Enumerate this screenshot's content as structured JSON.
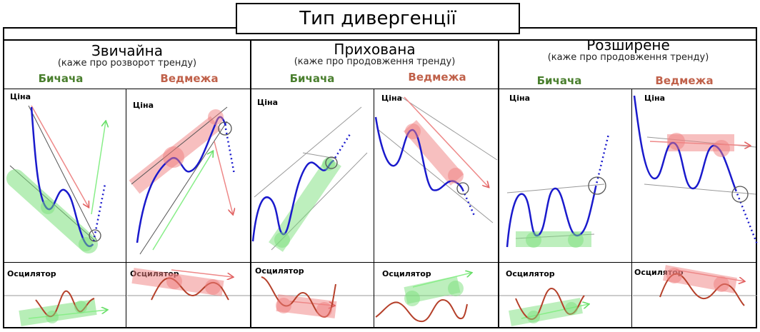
{
  "title": "Тип дивергенції",
  "groups": [
    {
      "name": "Звичайна",
      "note": "(каже про розворот тренду)"
    },
    {
      "name": "Прихована",
      "note": "(каже про продовження тренду)"
    },
    {
      "name": "Розширене",
      "note": "(каже про продовження тренду)"
    }
  ],
  "subtypes": {
    "bull": "Бичача",
    "bear": "Ведмежа"
  },
  "labels": {
    "price": "Ціна",
    "oscillator": "Осцилятор"
  },
  "colors": {
    "bull_label": "#4a7f2e",
    "bear_label": "#c0614a",
    "price_line": "#1a1acc",
    "osc_line": "#b5402a",
    "green_band": "#7be07b",
    "red_band": "#f08080"
  },
  "icons": [
    "circle-marker-icon",
    "arrow-icon"
  ]
}
